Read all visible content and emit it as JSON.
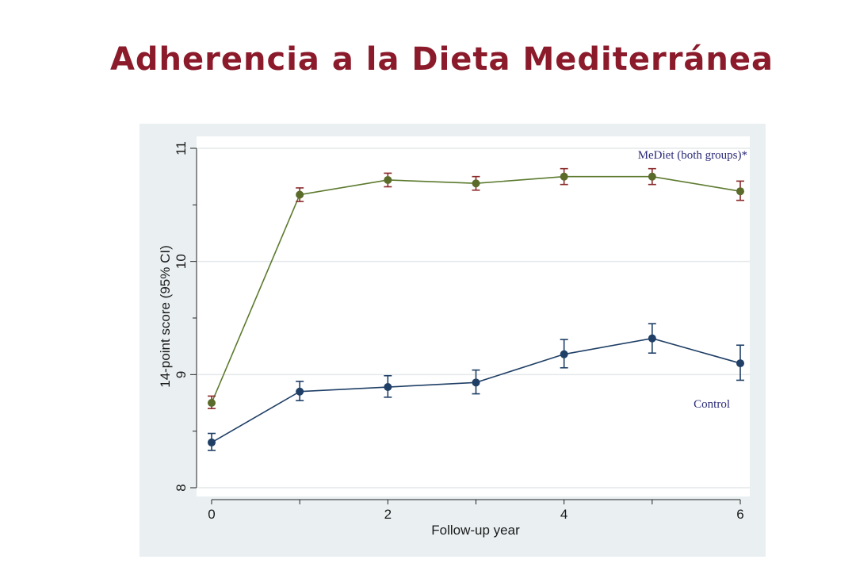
{
  "title": "Adherencia a la Dieta Mediterránea",
  "chart_data": {
    "type": "line",
    "xlabel": "Follow-up year",
    "ylabel": "14-point score (95% CI)",
    "x": [
      0,
      1,
      2,
      3,
      4,
      5,
      6
    ],
    "xlim": [
      0,
      6
    ],
    "ylim": [
      8,
      11
    ],
    "x_ticks": [
      0,
      1,
      2,
      3,
      4,
      5,
      6
    ],
    "x_tick_labels": [
      "0",
      "",
      "2",
      "",
      "4",
      "",
      "6"
    ],
    "y_ticks": [
      8,
      8.5,
      9,
      9.5,
      10,
      10.5,
      11
    ],
    "y_tick_labels": [
      "8",
      "",
      "9",
      "",
      "10",
      "",
      "11"
    ],
    "grid": true,
    "series": [
      {
        "name": "MeDiet (both groups)*",
        "color": "#5c7a2e",
        "marker_color": "#5a6b2a",
        "errorbar_color": "#8b2a2a",
        "values": [
          8.75,
          10.59,
          10.72,
          10.69,
          10.75,
          10.75,
          10.62
        ],
        "ci_low": [
          8.7,
          10.53,
          10.66,
          10.63,
          10.68,
          10.68,
          10.54
        ],
        "ci_high": [
          8.81,
          10.65,
          10.78,
          10.75,
          10.82,
          10.82,
          10.71
        ]
      },
      {
        "name": "Control",
        "color": "#1f3f66",
        "marker_color": "#1f3f66",
        "errorbar_color": "#1f3f66",
        "values": [
          8.4,
          8.85,
          8.89,
          8.93,
          9.18,
          9.32,
          9.1
        ],
        "ci_low": [
          8.33,
          8.77,
          8.8,
          8.83,
          9.06,
          9.19,
          8.95
        ],
        "ci_high": [
          8.48,
          8.94,
          8.99,
          9.04,
          9.31,
          9.45,
          9.26
        ]
      }
    ],
    "colors": {
      "panel_bg": "#eaf0f2",
      "plot_bg": "#ffffff",
      "grid": "#e3e8ea",
      "title": "#8b1a2b"
    }
  }
}
